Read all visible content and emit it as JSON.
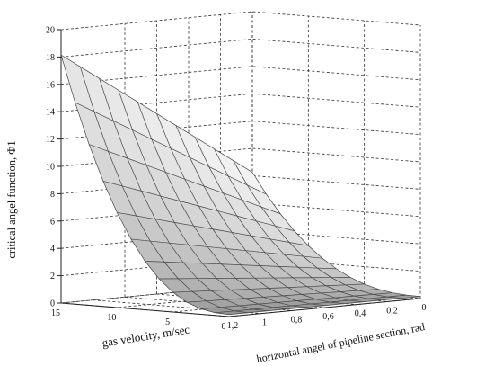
{
  "chart_data": {
    "type": "surface3d",
    "title": "",
    "zlabel": "critical angel function, Φ1",
    "xlabel": "gas velocity, m/sec",
    "ylabel": "horizontal angel of pipeline section, rad",
    "zlim": [
      0,
      20
    ],
    "z_ticks": [
      "0",
      "2",
      "4",
      "6",
      "8",
      "10",
      "12",
      "14",
      "16",
      "18",
      "20"
    ],
    "x_ticks": [
      "15",
      "10",
      "5",
      "0"
    ],
    "y_ticks": [
      "1,2",
      "1",
      "0,8",
      "0,6",
      "0,4",
      "0,2",
      "0"
    ],
    "x_range": [
      0,
      15
    ],
    "y_range": [
      0,
      1.2
    ],
    "grid": true,
    "surface": {
      "description_values": "z(v, angle) decreasing with v; max ~18 at v=15, angle=1.2; ~0 at v=0",
      "z_max": 18,
      "z_min": 0
    }
  }
}
